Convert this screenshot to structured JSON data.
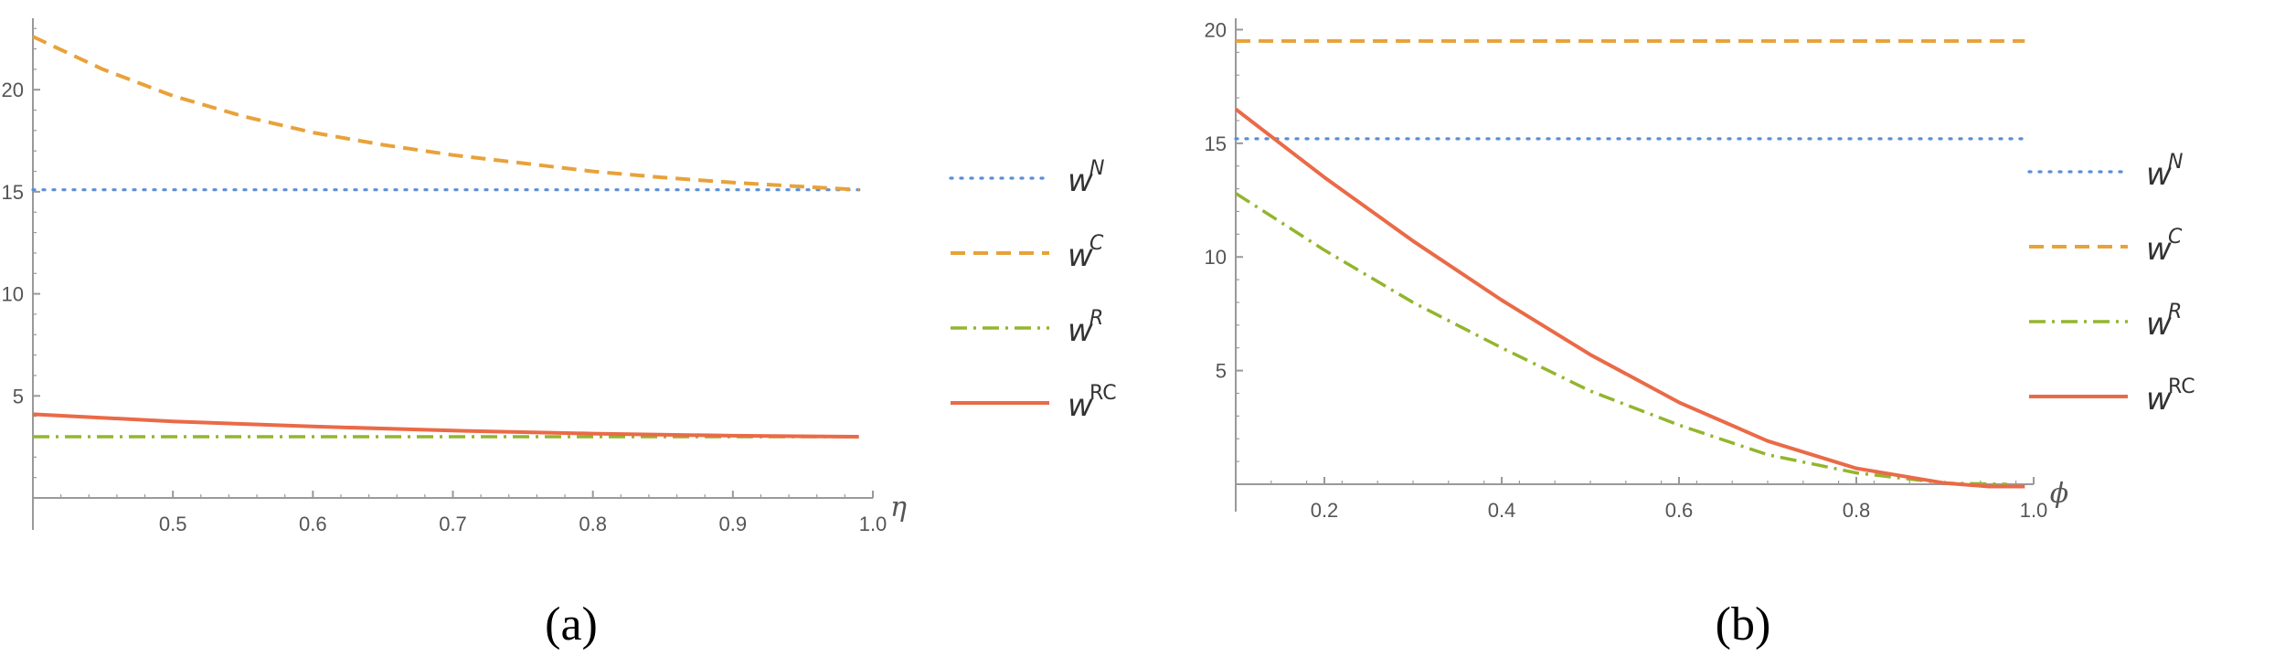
{
  "colors": {
    "wN": "#5b8ed6",
    "wC": "#e8a23a",
    "wR": "#93b52e",
    "wRC": "#ea6a47",
    "axis": "#999999",
    "ticks": "#555555"
  },
  "chart_data": [
    {
      "type": "line",
      "caption": "(a)",
      "xlabel": "η",
      "ylabel": "",
      "xlim": [
        0.4,
        1.0
      ],
      "ylim": [
        -1.5,
        23.5
      ],
      "x_axis_at_y": 0,
      "x_ticks": [
        "0.5",
        "0.6",
        "0.7",
        "0.8",
        "0.9",
        "1.0"
      ],
      "y_ticks": [
        "5",
        "10",
        "15",
        "20"
      ],
      "legend": {
        "placement": "right",
        "entries": [
          {
            "base": "w",
            "sup": "N"
          },
          {
            "base": "w",
            "sup": "C"
          },
          {
            "base": "w",
            "sup": "R"
          },
          {
            "base": "w",
            "sup": "RC"
          }
        ]
      },
      "series": [
        {
          "name": "w^N",
          "style": "dotted",
          "x": [
            0.4,
            0.99
          ],
          "y": [
            15.1,
            15.1
          ]
        },
        {
          "name": "w^C",
          "style": "dashed",
          "x": [
            0.4,
            0.45,
            0.5,
            0.55,
            0.6,
            0.65,
            0.7,
            0.75,
            0.8,
            0.85,
            0.9,
            0.95,
            0.99
          ],
          "y": [
            22.6,
            21.0,
            19.7,
            18.7,
            17.9,
            17.3,
            16.8,
            16.4,
            16.0,
            15.7,
            15.45,
            15.25,
            15.1
          ]
        },
        {
          "name": "w^R",
          "style": "dashdot",
          "x": [
            0.4,
            0.99
          ],
          "y": [
            3.0,
            3.0
          ]
        },
        {
          "name": "w^RC",
          "style": "solid",
          "x": [
            0.4,
            0.5,
            0.6,
            0.7,
            0.8,
            0.9,
            0.99
          ],
          "y": [
            4.1,
            3.75,
            3.5,
            3.3,
            3.15,
            3.05,
            3.0
          ]
        }
      ]
    },
    {
      "type": "line",
      "caption": "(b)",
      "xlabel": "ϕ",
      "ylabel": "",
      "xlim": [
        0.1,
        1.0
      ],
      "ylim": [
        -1.0,
        20.5
      ],
      "x_axis_at_y": 0,
      "x_ticks": [
        "0.2",
        "0.4",
        "0.6",
        "0.8",
        "1.0"
      ],
      "y_ticks": [
        "5",
        "10",
        "15",
        "20"
      ],
      "legend": {
        "placement": "right",
        "entries": [
          {
            "base": "w",
            "sup": "N"
          },
          {
            "base": "w",
            "sup": "C"
          },
          {
            "base": "w",
            "sup": "R"
          },
          {
            "base": "w",
            "sup": "RC"
          }
        ]
      },
      "series": [
        {
          "name": "w^N",
          "style": "dotted",
          "x": [
            0.1,
            0.99
          ],
          "y": [
            15.2,
            15.2
          ]
        },
        {
          "name": "w^C",
          "style": "dashed",
          "x": [
            0.1,
            0.99
          ],
          "y": [
            19.5,
            19.5
          ]
        },
        {
          "name": "w^R",
          "style": "dashdot",
          "x": [
            0.1,
            0.2,
            0.3,
            0.4,
            0.5,
            0.6,
            0.7,
            0.8,
            0.9,
            0.97
          ],
          "y": [
            12.8,
            10.3,
            8.0,
            6.0,
            4.1,
            2.6,
            1.3,
            0.5,
            0.05,
            0.0
          ]
        },
        {
          "name": "w^RC",
          "style": "solid",
          "x": [
            0.1,
            0.2,
            0.3,
            0.4,
            0.5,
            0.6,
            0.7,
            0.8,
            0.9,
            0.95,
            0.99
          ],
          "y": [
            16.5,
            13.5,
            10.7,
            8.1,
            5.7,
            3.6,
            1.9,
            0.7,
            0.05,
            -0.1,
            -0.1
          ]
        }
      ]
    }
  ]
}
